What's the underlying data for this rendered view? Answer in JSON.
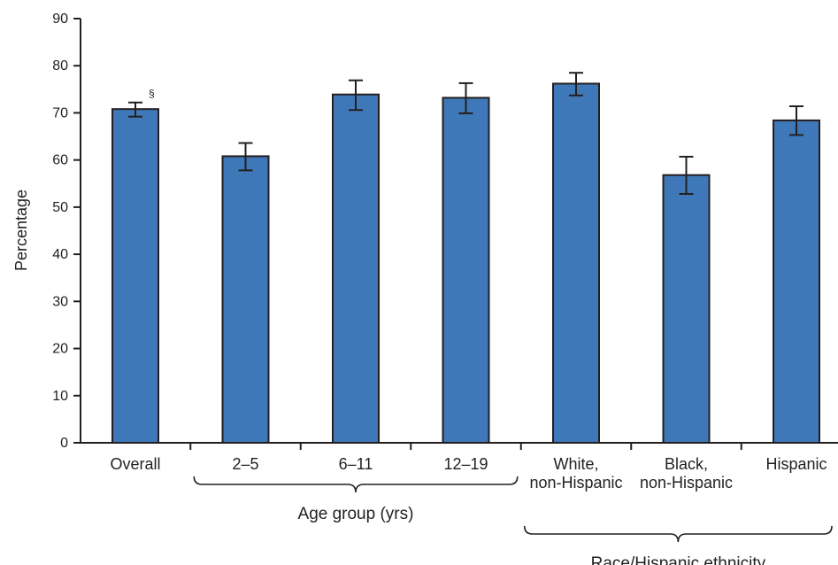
{
  "chart_data": {
    "type": "bar",
    "categories": [
      [
        "Overall"
      ],
      [
        "2–5"
      ],
      [
        "6–11"
      ],
      [
        "12–19"
      ],
      [
        "White,",
        "non-Hispanic"
      ],
      [
        "Black,",
        "non-Hispanic"
      ],
      [
        "Hispanic"
      ]
    ],
    "values": [
      70.8,
      60.8,
      73.9,
      73.2,
      76.2,
      56.8,
      68.4
    ],
    "ci_low": [
      69.2,
      57.8,
      70.6,
      69.9,
      73.7,
      52.8,
      65.3
    ],
    "ci_high": [
      72.2,
      63.6,
      76.9,
      76.3,
      78.5,
      60.7,
      71.4
    ],
    "ylabel": "Percentage",
    "ylim": [
      0,
      90
    ],
    "yticks": [
      0,
      10,
      20,
      30,
      40,
      50,
      60,
      70,
      80,
      90
    ],
    "annotations": [
      {
        "category_index": 0,
        "text": "§"
      }
    ],
    "groups": [
      {
        "label": "Age group (yrs)",
        "from": 1,
        "to": 3
      },
      {
        "label": "Race/Hispanic ethnicity",
        "from": 4,
        "to": 6
      }
    ],
    "bar_color": "#3f78b9",
    "grid": false
  }
}
